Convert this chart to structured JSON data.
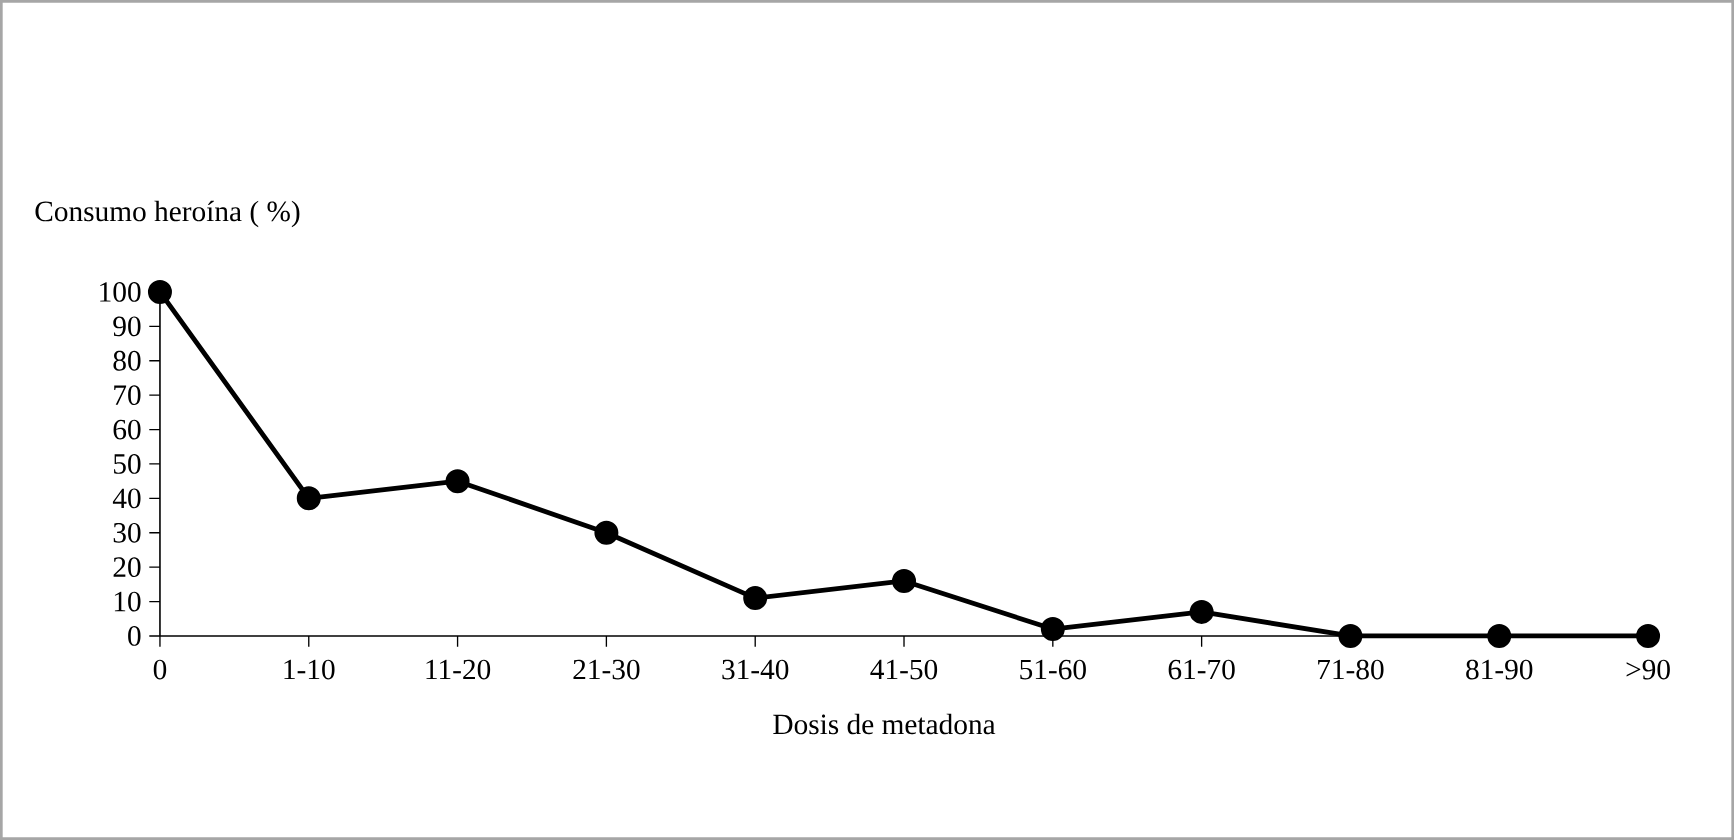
{
  "chart_data": {
    "type": "line",
    "ylabel": "Consumo heroína ( %)",
    "xlabel": "Dosis de metadona",
    "categories": [
      "0",
      "1-10",
      "11-20",
      "21-30",
      "31-40",
      "41-50",
      "51-60",
      "61-70",
      "71-80",
      "81-90",
      ">90"
    ],
    "series": [
      {
        "color": "#000000",
        "values": [
          100,
          40,
          45,
          30,
          11,
          16,
          2,
          7,
          0,
          0,
          0
        ]
      }
    ],
    "ylim": [
      0,
      100
    ],
    "yticks": [
      0,
      10,
      20,
      30,
      40,
      50,
      60,
      70,
      80,
      90,
      100
    ],
    "marker": "circle",
    "line_style": "solid",
    "grid": false
  }
}
